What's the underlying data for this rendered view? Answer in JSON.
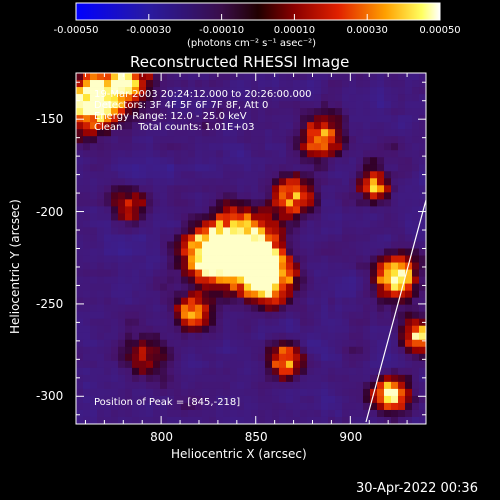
{
  "colorbar": {
    "ticks": [
      "-0.00050",
      "-0.00030",
      "-0.00010",
      "0.00010",
      "0.00030",
      "0.00050"
    ],
    "unit_label": "(photons cm⁻² s⁻¹ asec⁻²)",
    "range": [
      -0.0005,
      0.0005
    ]
  },
  "plot": {
    "title": "Reconstructed RHESSI Image",
    "xlabel": "Heliocentric X (arcsec)",
    "ylabel": "Heliocentric Y (arcsec)",
    "x_ticks": [
      "800",
      "850",
      "900"
    ],
    "y_ticks": [
      "-150",
      "-200",
      "-250",
      "-300"
    ],
    "xlim": [
      755,
      940
    ],
    "ylim": [
      -315,
      -125
    ]
  },
  "overlay": {
    "time": "19-Mar-2003 20:24:12.000 to 20:26:00.000",
    "detectors": "Detectors: 3F 4F 5F 6F 7F 8F, Att 0",
    "energy": "Energy Range: 12.0 - 25.0 keV",
    "clean": "Clean     Total counts: 1.01E+03",
    "peak": "Position of Peak = [845,-218]"
  },
  "timestamp": "30-Apr-2022 00:36"
}
